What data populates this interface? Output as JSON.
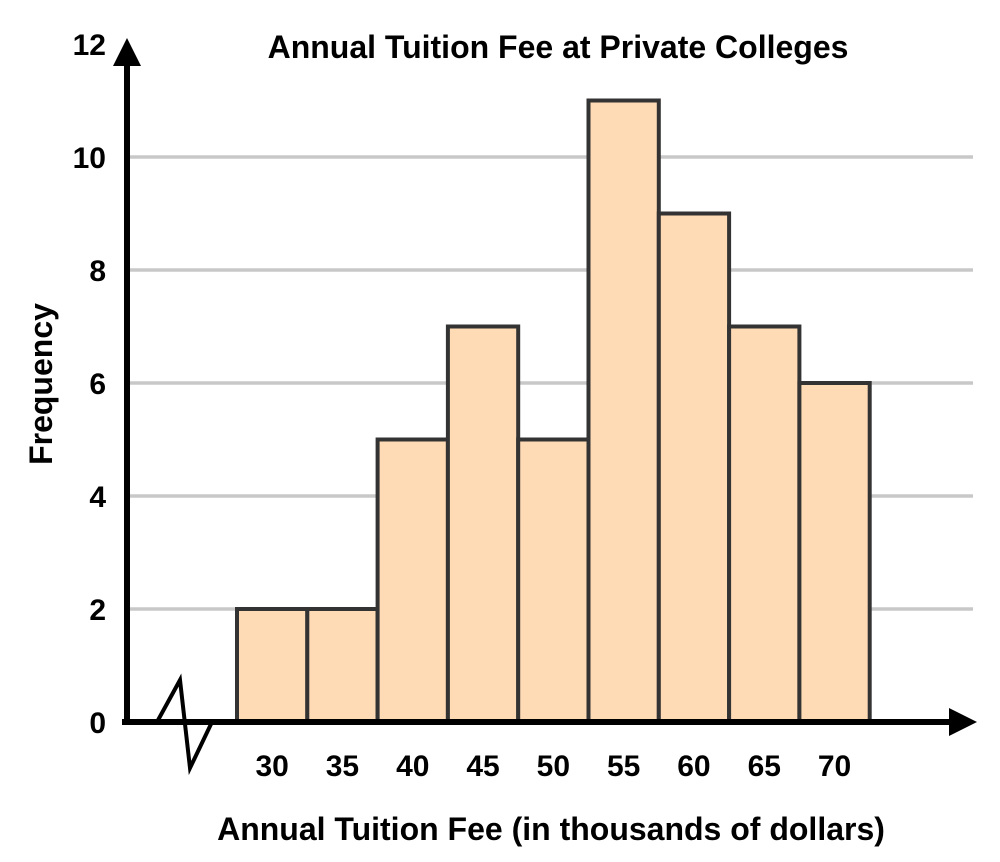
{
  "chart_data": {
    "type": "bar",
    "title": "Annual Tuition Fee at Private Colleges",
    "xlabel": "Annual Tuition Fee (in thousands of dollars)",
    "ylabel": "Frequency",
    "categories": [
      "30",
      "35",
      "40",
      "45",
      "50",
      "55",
      "60",
      "65",
      "70"
    ],
    "values": [
      2,
      2,
      5,
      7,
      5,
      11,
      9,
      7,
      6
    ],
    "ylim": [
      0,
      12
    ],
    "yticks": [
      "0",
      "2",
      "4",
      "6",
      "8",
      "10",
      "12"
    ],
    "grid": true,
    "axis_break": "x-axis break symbol near origin",
    "colors": {
      "bar_fill": "#ffdbb5",
      "bar_stroke": "#333333",
      "grid": "#c8c8c8",
      "axis": "#000000"
    }
  }
}
